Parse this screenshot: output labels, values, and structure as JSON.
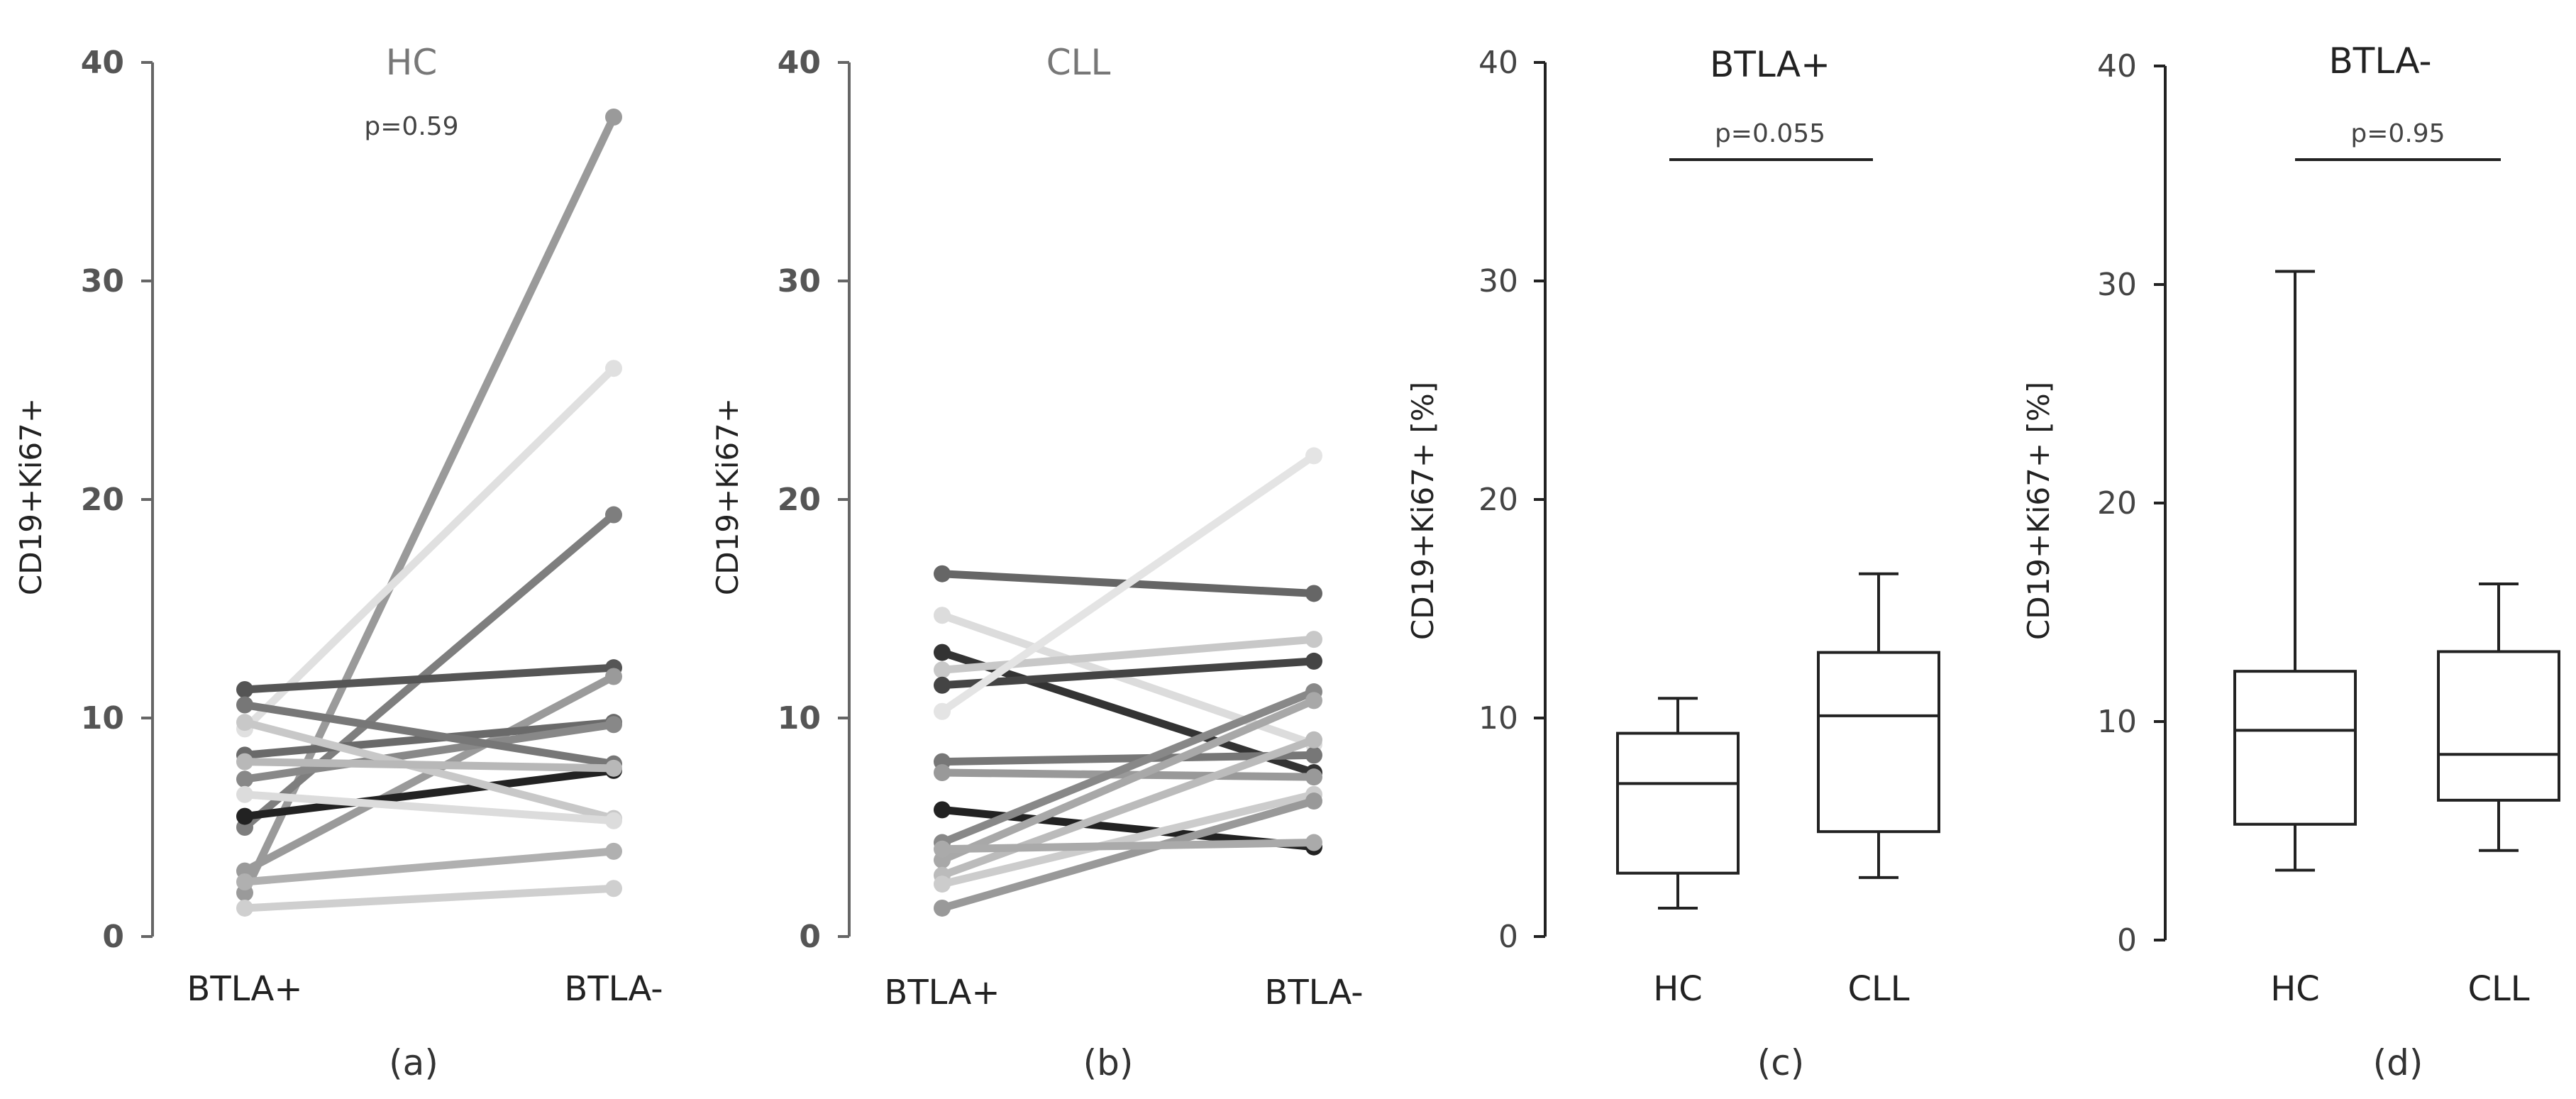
{
  "chart_data": [
    {
      "type": "line",
      "panel_label": "(a)",
      "title": "HC",
      "annotation": "p=0.59",
      "ylabel": "CD19+Ki67+",
      "categories": [
        "BTLA+",
        "BTLA-"
      ],
      "yticks": [
        "0",
        "10",
        "20",
        "30",
        "40"
      ],
      "ylim": [
        0,
        40
      ],
      "series": [
        {
          "values": [
            2.0,
            37.5
          ],
          "color": "#9a9a9a"
        },
        {
          "values": [
            9.5,
            26.0
          ],
          "color": "#e0e0e0"
        },
        {
          "values": [
            5.0,
            19.3
          ],
          "color": "#7e7e7e"
        },
        {
          "values": [
            11.3,
            12.3
          ],
          "color": "#555555"
        },
        {
          "values": [
            3.0,
            11.9
          ],
          "color": "#9a9a9a"
        },
        {
          "values": [
            8.3,
            9.8
          ],
          "color": "#6a6a6a"
        },
        {
          "values": [
            7.2,
            9.7
          ],
          "color": "#888888"
        },
        {
          "values": [
            5.5,
            7.6
          ],
          "color": "#222222"
        },
        {
          "values": [
            10.6,
            7.9
          ],
          "color": "#777777"
        },
        {
          "values": [
            9.8,
            5.4
          ],
          "color": "#c8c8c8"
        },
        {
          "values": [
            6.5,
            5.3
          ],
          "color": "#dcdcdc"
        },
        {
          "values": [
            2.5,
            3.9
          ],
          "color": "#b0b0b0"
        },
        {
          "values": [
            1.3,
            2.2
          ],
          "color": "#cfcfcf"
        },
        {
          "values": [
            8.0,
            7.7
          ],
          "color": "#b8b8b8"
        }
      ]
    },
    {
      "type": "line",
      "panel_label": "(b)",
      "title": "CLL",
      "ylabel": "CD19+Ki67+",
      "categories": [
        "BTLA+",
        "BTLA-"
      ],
      "yticks": [
        "0",
        "10",
        "20",
        "30",
        "40"
      ],
      "ylim": [
        0,
        40
      ],
      "series": [
        {
          "values": [
            16.6,
            15.7
          ],
          "color": "#666666"
        },
        {
          "values": [
            14.7,
            8.8
          ],
          "color": "#dcdcdc"
        },
        {
          "values": [
            13.0,
            7.5
          ],
          "color": "#333333"
        },
        {
          "values": [
            12.2,
            13.6
          ],
          "color": "#c8c8c8"
        },
        {
          "values": [
            11.5,
            12.6
          ],
          "color": "#444444"
        },
        {
          "values": [
            10.3,
            22.0
          ],
          "color": "#e4e4e4"
        },
        {
          "values": [
            8.0,
            8.3
          ],
          "color": "#777777"
        },
        {
          "values": [
            7.5,
            7.3
          ],
          "color": "#999999"
        },
        {
          "values": [
            5.8,
            4.1
          ],
          "color": "#222222"
        },
        {
          "values": [
            4.3,
            11.2
          ],
          "color": "#888888"
        },
        {
          "values": [
            3.5,
            10.8
          ],
          "color": "#a8a8a8"
        },
        {
          "values": [
            2.8,
            9.0
          ],
          "color": "#bbbbbb"
        },
        {
          "values": [
            2.4,
            6.5
          ],
          "color": "#cccccc"
        },
        {
          "values": [
            1.3,
            6.2
          ],
          "color": "#999999"
        },
        {
          "values": [
            4.0,
            4.3
          ],
          "color": "#aaaaaa"
        }
      ]
    },
    {
      "type": "box",
      "panel_label": "(c)",
      "title": "BTLA+",
      "annotation": "p=0.055",
      "ylabel": "CD19+Ki67+ [%]",
      "categories": [
        "HC",
        "CLL"
      ],
      "yticks": [
        "0",
        "10",
        "20",
        "30",
        "40"
      ],
      "ylim": [
        0,
        40
      ],
      "boxes": [
        {
          "min": 1.3,
          "q1": 2.9,
          "median": 7.0,
          "q3": 9.3,
          "max": 10.9
        },
        {
          "min": 2.7,
          "q1": 4.8,
          "median": 10.1,
          "q3": 13.0,
          "max": 16.6
        }
      ]
    },
    {
      "type": "box",
      "panel_label": "(d)",
      "title": "BTLA-",
      "annotation": "p=0.95",
      "ylabel": "CD19+Ki67+ [%]",
      "categories": [
        "HC",
        "CLL"
      ],
      "yticks": [
        "0",
        "10",
        "20",
        "30",
        "40"
      ],
      "ylim": [
        0,
        40
      ],
      "boxes": [
        {
          "min": 3.2,
          "q1": 5.3,
          "median": 9.6,
          "q3": 12.3,
          "max": 30.6
        },
        {
          "min": 4.1,
          "q1": 6.4,
          "median": 8.5,
          "q3": 13.2,
          "max": 16.3
        }
      ]
    }
  ]
}
